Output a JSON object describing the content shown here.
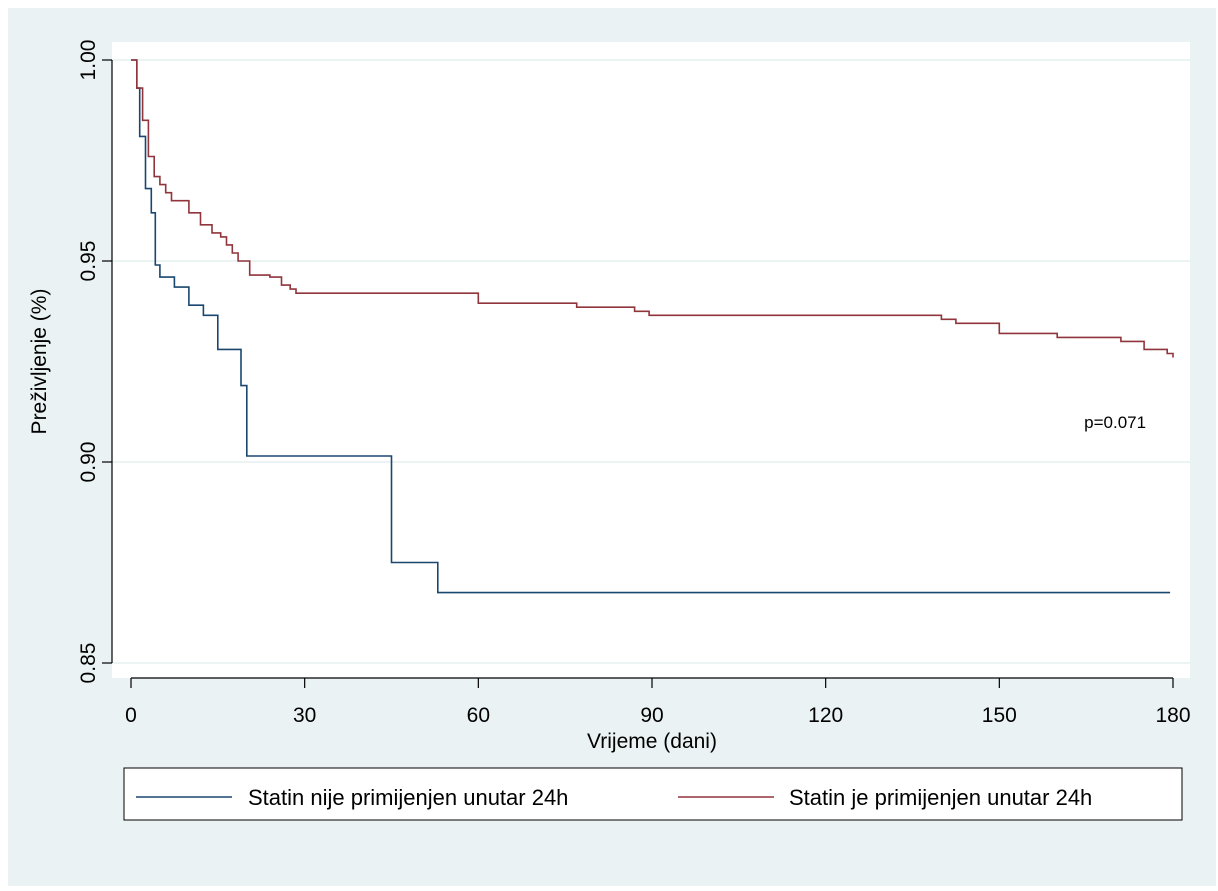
{
  "chart_data": {
    "type": "line",
    "title": "",
    "xlabel": "Vrijeme (dani)",
    "ylabel": "Preživljenje (%)",
    "xlim": [
      0,
      180
    ],
    "ylim": [
      0.85,
      1.0
    ],
    "x_ticks": [
      0,
      30,
      60,
      90,
      120,
      150,
      180
    ],
    "x_tick_labels": [
      "0",
      "30",
      "60",
      "90",
      "120",
      "150",
      "180"
    ],
    "y_ticks": [
      0.85,
      0.9,
      0.95,
      1.0
    ],
    "y_tick_labels": [
      "0.85",
      "0.90",
      "0.95",
      "1.00"
    ],
    "grid": "horizontal",
    "step": true,
    "annotation": {
      "text": "p=0.071",
      "x": 170,
      "y": 0.91
    },
    "legend_position": "bottom",
    "series": [
      {
        "name": "Statin nije primijenjen unutar 24h",
        "color": "#1a476f",
        "points": [
          [
            0,
            1.0
          ],
          [
            1,
            0.993
          ],
          [
            1.5,
            0.981
          ],
          [
            2.5,
            0.968
          ],
          [
            3.5,
            0.962
          ],
          [
            4.2,
            0.949
          ],
          [
            5,
            0.946
          ],
          [
            7.5,
            0.9435
          ],
          [
            10,
            0.939
          ],
          [
            12.5,
            0.9365
          ],
          [
            15,
            0.928
          ],
          [
            19,
            0.919
          ],
          [
            20,
            0.9015
          ],
          [
            45,
            0.875
          ],
          [
            53,
            0.8675
          ],
          [
            179.5,
            0.8675
          ]
        ]
      },
      {
        "name": "Statin je primijenjen unutar 24h",
        "color": "#90353b",
        "points": [
          [
            0,
            1.0
          ],
          [
            1,
            0.993
          ],
          [
            2,
            0.985
          ],
          [
            3,
            0.976
          ],
          [
            4,
            0.971
          ],
          [
            5,
            0.969
          ],
          [
            6,
            0.967
          ],
          [
            7,
            0.965
          ],
          [
            10,
            0.962
          ],
          [
            12,
            0.959
          ],
          [
            14,
            0.957
          ],
          [
            15.5,
            0.956
          ],
          [
            16.5,
            0.954
          ],
          [
            17.5,
            0.952
          ],
          [
            18.5,
            0.95
          ],
          [
            20.5,
            0.9465
          ],
          [
            24,
            0.946
          ],
          [
            26,
            0.944
          ],
          [
            27.5,
            0.943
          ],
          [
            28.5,
            0.942
          ],
          [
            60,
            0.9395
          ],
          [
            77,
            0.9385
          ],
          [
            87,
            0.9375
          ],
          [
            89.5,
            0.9365
          ],
          [
            140,
            0.9355
          ],
          [
            142.5,
            0.9345
          ],
          [
            150,
            0.932
          ],
          [
            160,
            0.931
          ],
          [
            171,
            0.93
          ],
          [
            175,
            0.928
          ],
          [
            179,
            0.927
          ],
          [
            180,
            0.926
          ]
        ]
      }
    ]
  }
}
